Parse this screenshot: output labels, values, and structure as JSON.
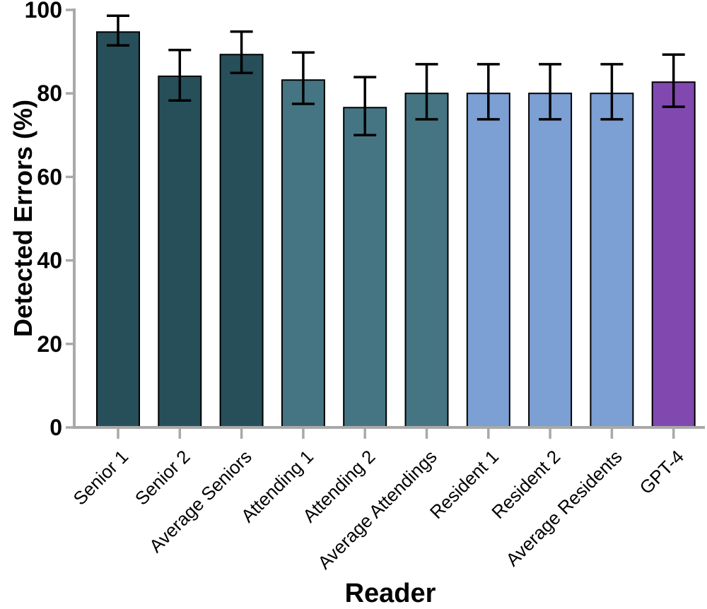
{
  "figure": {
    "background_color": "#ffffff",
    "axis_color": "#a9a9a9",
    "text_color": "#000000"
  },
  "chart_data": {
    "type": "bar",
    "title": "",
    "xlabel": "Reader",
    "ylabel": "Detected Errors (%)",
    "ylim": [
      0,
      100
    ],
    "yticks": [
      0,
      20,
      40,
      60,
      80,
      100
    ],
    "ytick_labels": [
      "0",
      "20",
      "40",
      "60",
      "80",
      "100"
    ],
    "grid": false,
    "legend_position": "none",
    "categories": [
      "Senior 1",
      "Senior 2",
      "Average Seniors",
      "Attending 1",
      "Attending 2",
      "Average Attendings",
      "Resident 1",
      "Resident 2",
      "Average Residents",
      "GPT-4"
    ],
    "values": [
      94.7,
      84.1,
      89.3,
      83.2,
      76.6,
      80.0,
      80.0,
      80.0,
      80.0,
      82.7
    ],
    "error_bars": {
      "upper": [
        98.6,
        90.4,
        94.8,
        89.8,
        83.9,
        87.0,
        87.0,
        87.0,
        87.0,
        89.3
      ],
      "lower": [
        91.5,
        78.3,
        84.9,
        77.5,
        70.0,
        73.8,
        73.8,
        73.8,
        73.8,
        76.8
      ]
    },
    "bar_colors": [
      "#264f5a",
      "#264f5a",
      "#264f5a",
      "#457582",
      "#457582",
      "#457582",
      "#7c9fd4",
      "#7c9fd4",
      "#7c9fd4",
      "#8149b0"
    ],
    "groups": [
      {
        "name": "Seniors",
        "color": "#264f5a"
      },
      {
        "name": "Attendings",
        "color": "#457582"
      },
      {
        "name": "Residents",
        "color": "#7c9fd4"
      },
      {
        "name": "GPT-4",
        "color": "#8149b0"
      }
    ],
    "bar_edge_color": "#000000",
    "error_bar_color": "#000000",
    "x_label_rotation_deg": -45
  }
}
